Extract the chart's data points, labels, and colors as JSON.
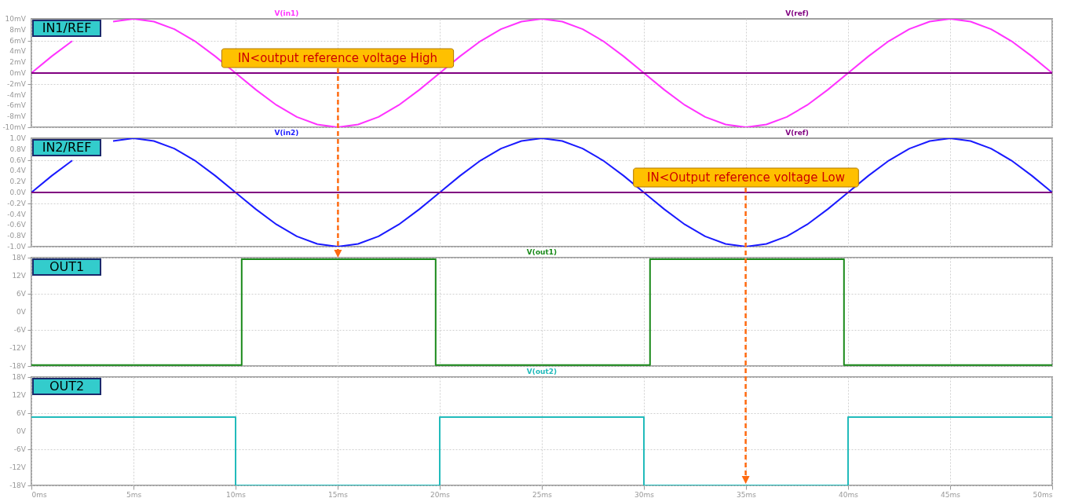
{
  "chart_data": [
    {
      "type": "line",
      "title": "IN1/REF",
      "grid": true,
      "tick_labels": "y",
      "xlim": [
        0,
        50
      ],
      "xticks": [
        {
          "value": 0,
          "label": null
        },
        {
          "value": 5,
          "label": null
        },
        {
          "value": 10,
          "label": null
        },
        {
          "value": 15,
          "label": null
        },
        {
          "value": 20,
          "label": null
        },
        {
          "value": 25,
          "label": null
        },
        {
          "value": 30,
          "label": null
        },
        {
          "value": 35,
          "label": null
        },
        {
          "value": 40,
          "label": null
        },
        {
          "value": 45,
          "label": null
        },
        {
          "value": 50,
          "label": null
        }
      ],
      "ylim": [
        -10,
        10
      ],
      "yticks": [
        {
          "value": -10,
          "label": "-10mV"
        },
        {
          "value": -8,
          "label": "-8mV"
        },
        {
          "value": -6,
          "label": "-6mV"
        },
        {
          "value": -4,
          "label": "-4mV"
        },
        {
          "value": -2,
          "label": "-2mV"
        },
        {
          "value": 0,
          "label": "0mV"
        },
        {
          "value": 2,
          "label": "2mV"
        },
        {
          "value": 4,
          "label": "4mV"
        },
        {
          "value": 6,
          "label": "6mV"
        },
        {
          "value": 8,
          "label": "8mV"
        },
        {
          "value": 10,
          "label": "10mV"
        }
      ],
      "annotations": [
        "IN<output reference voltage High"
      ],
      "series": [
        {
          "name": "V(in1)",
          "color": "#ff33ff",
          "x": [
            0,
            1,
            2,
            3,
            4,
            5,
            6,
            7,
            8,
            9,
            10,
            11,
            12,
            13,
            14,
            15,
            16,
            17,
            18,
            19,
            20,
            21,
            22,
            23,
            24,
            25,
            26,
            27,
            28,
            29,
            30,
            31,
            32,
            33,
            34,
            35,
            36,
            37,
            38,
            39,
            40,
            41,
            42,
            43,
            44,
            45,
            46,
            47,
            48,
            49,
            50
          ],
          "values": [
            0,
            3.1,
            5.9,
            null,
            9.5,
            10,
            9.5,
            8.1,
            5.9,
            3.1,
            0,
            -3.1,
            -5.9,
            -8.1,
            -9.5,
            -10,
            -9.5,
            -8.1,
            -5.9,
            -3.1,
            0,
            3.1,
            5.9,
            8.1,
            9.5,
            10,
            9.5,
            8.1,
            5.9,
            3.1,
            0,
            -3.1,
            -5.9,
            -8.1,
            -9.5,
            -10,
            -9.5,
            -8.1,
            -5.9,
            -3.1,
            0,
            3.1,
            5.9,
            8.1,
            9.5,
            10,
            9.5,
            8.1,
            5.9,
            3.1,
            0
          ]
        },
        {
          "name": "V(ref)",
          "color": "#800080",
          "x": [
            0,
            50
          ],
          "values": [
            0,
            0
          ]
        }
      ]
    },
    {
      "type": "line",
      "title": "IN2/REF",
      "grid": true,
      "tick_labels": "y",
      "xlim": [
        0,
        50
      ],
      "xticks": [
        {
          "value": 0,
          "label": null
        },
        {
          "value": 5,
          "label": null
        },
        {
          "value": 10,
          "label": null
        },
        {
          "value": 15,
          "label": null
        },
        {
          "value": 20,
          "label": null
        },
        {
          "value": 25,
          "label": null
        },
        {
          "value": 30,
          "label": null
        },
        {
          "value": 35,
          "label": null
        },
        {
          "value": 40,
          "label": null
        },
        {
          "value": 45,
          "label": null
        },
        {
          "value": 50,
          "label": null
        }
      ],
      "ylim": [
        -1,
        1
      ],
      "yticks": [
        {
          "value": -1,
          "label": "-1.0V"
        },
        {
          "value": -0.8,
          "label": "-0.8V"
        },
        {
          "value": -0.6,
          "label": "-0.6V"
        },
        {
          "value": -0.4,
          "label": "-0.4V"
        },
        {
          "value": -0.2,
          "label": "-0.2V"
        },
        {
          "value": 0,
          "label": "0.0V"
        },
        {
          "value": 0.2,
          "label": "0.2V"
        },
        {
          "value": 0.4,
          "label": "0.4V"
        },
        {
          "value": 0.6,
          "label": "0.6V"
        },
        {
          "value": 0.8,
          "label": "0.8V"
        },
        {
          "value": 1,
          "label": "1.0V"
        }
      ],
      "annotations": [
        "IN<Output reference voltage Low"
      ],
      "series": [
        {
          "name": "V(in2)",
          "color": "#1a1aff",
          "x": [
            0,
            1,
            2,
            3,
            4,
            5,
            6,
            7,
            8,
            9,
            10,
            11,
            12,
            13,
            14,
            15,
            16,
            17,
            18,
            19,
            20,
            21,
            22,
            23,
            24,
            25,
            26,
            27,
            28,
            29,
            30,
            31,
            32,
            33,
            34,
            35,
            36,
            37,
            38,
            39,
            40,
            41,
            42,
            43,
            44,
            45,
            46,
            47,
            48,
            49,
            50
          ],
          "values": [
            0,
            0.31,
            0.59,
            null,
            0.95,
            1,
            0.95,
            0.81,
            0.59,
            0.31,
            0,
            -0.31,
            -0.59,
            -0.81,
            -0.95,
            -1,
            -0.95,
            -0.81,
            -0.59,
            -0.31,
            0,
            0.31,
            0.59,
            0.81,
            0.95,
            1,
            0.95,
            0.81,
            0.59,
            0.31,
            0,
            -0.31,
            -0.59,
            -0.81,
            -0.95,
            -1,
            -0.95,
            -0.81,
            -0.59,
            -0.31,
            0,
            0.31,
            0.59,
            0.81,
            0.95,
            1,
            0.95,
            0.81,
            0.59,
            0.31,
            0
          ]
        },
        {
          "name": "V(ref)",
          "color": "#800080",
          "x": [
            0,
            50
          ],
          "values": [
            0,
            0
          ]
        }
      ]
    },
    {
      "type": "step",
      "title": "OUT1",
      "grid": true,
      "tick_labels": "y",
      "xlim": [
        0,
        50
      ],
      "xticks": [
        {
          "value": 0,
          "label": null
        },
        {
          "value": 5,
          "label": null
        },
        {
          "value": 10,
          "label": null
        },
        {
          "value": 15,
          "label": null
        },
        {
          "value": 20,
          "label": null
        },
        {
          "value": 25,
          "label": null
        },
        {
          "value": 30,
          "label": null
        },
        {
          "value": 35,
          "label": null
        },
        {
          "value": 40,
          "label": null
        },
        {
          "value": 45,
          "label": null
        },
        {
          "value": 50,
          "label": null
        }
      ],
      "ylim": [
        -18,
        18
      ],
      "yticks": [
        {
          "value": -18,
          "label": "-18V"
        },
        {
          "value": -12,
          "label": "-12V"
        },
        {
          "value": -6,
          "label": "-6V"
        },
        {
          "value": 0,
          "label": "0V"
        },
        {
          "value": 6,
          "label": "6V"
        },
        {
          "value": 12,
          "label": "12V"
        },
        {
          "value": 18,
          "label": "18V"
        }
      ],
      "series": [
        {
          "name": "V(out1)",
          "color": "#1a8a1a",
          "x": [
            0,
            10.3,
            19.8,
            30.3,
            39.8,
            50
          ],
          "values": [
            -17.7,
            17.5,
            -17.7,
            17.5,
            -17.7,
            -17.7
          ]
        }
      ]
    },
    {
      "type": "step",
      "title": "OUT2",
      "grid": true,
      "xlim": [
        0,
        50
      ],
      "xticks": [
        {
          "value": 0,
          "label": "0ms"
        },
        {
          "value": 5,
          "label": "5ms"
        },
        {
          "value": 10,
          "label": "10ms"
        },
        {
          "value": 15,
          "label": "15ms"
        },
        {
          "value": 20,
          "label": "20ms"
        },
        {
          "value": 25,
          "label": "25ms"
        },
        {
          "value": 30,
          "label": "30ms"
        },
        {
          "value": 35,
          "label": "35ms"
        },
        {
          "value": 40,
          "label": "40ms"
        },
        {
          "value": 45,
          "label": "45ms"
        },
        {
          "value": 50,
          "label": "50ms"
        }
      ],
      "ylim": [
        -18,
        18
      ],
      "yticks": [
        {
          "value": -18,
          "label": "-18V"
        },
        {
          "value": -12,
          "label": "-12V"
        },
        {
          "value": -6,
          "label": "-6V"
        },
        {
          "value": 0,
          "label": "0V"
        },
        {
          "value": 6,
          "label": "6V"
        },
        {
          "value": 12,
          "label": "12V"
        },
        {
          "value": 18,
          "label": "18V"
        }
      ],
      "series": [
        {
          "name": "V(out2)",
          "color": "#22bbbb",
          "x": [
            0,
            10,
            20,
            30,
            40,
            50
          ],
          "values": [
            4.7,
            -18,
            4.7,
            -18,
            4.7,
            4.7
          ]
        }
      ]
    }
  ]
}
